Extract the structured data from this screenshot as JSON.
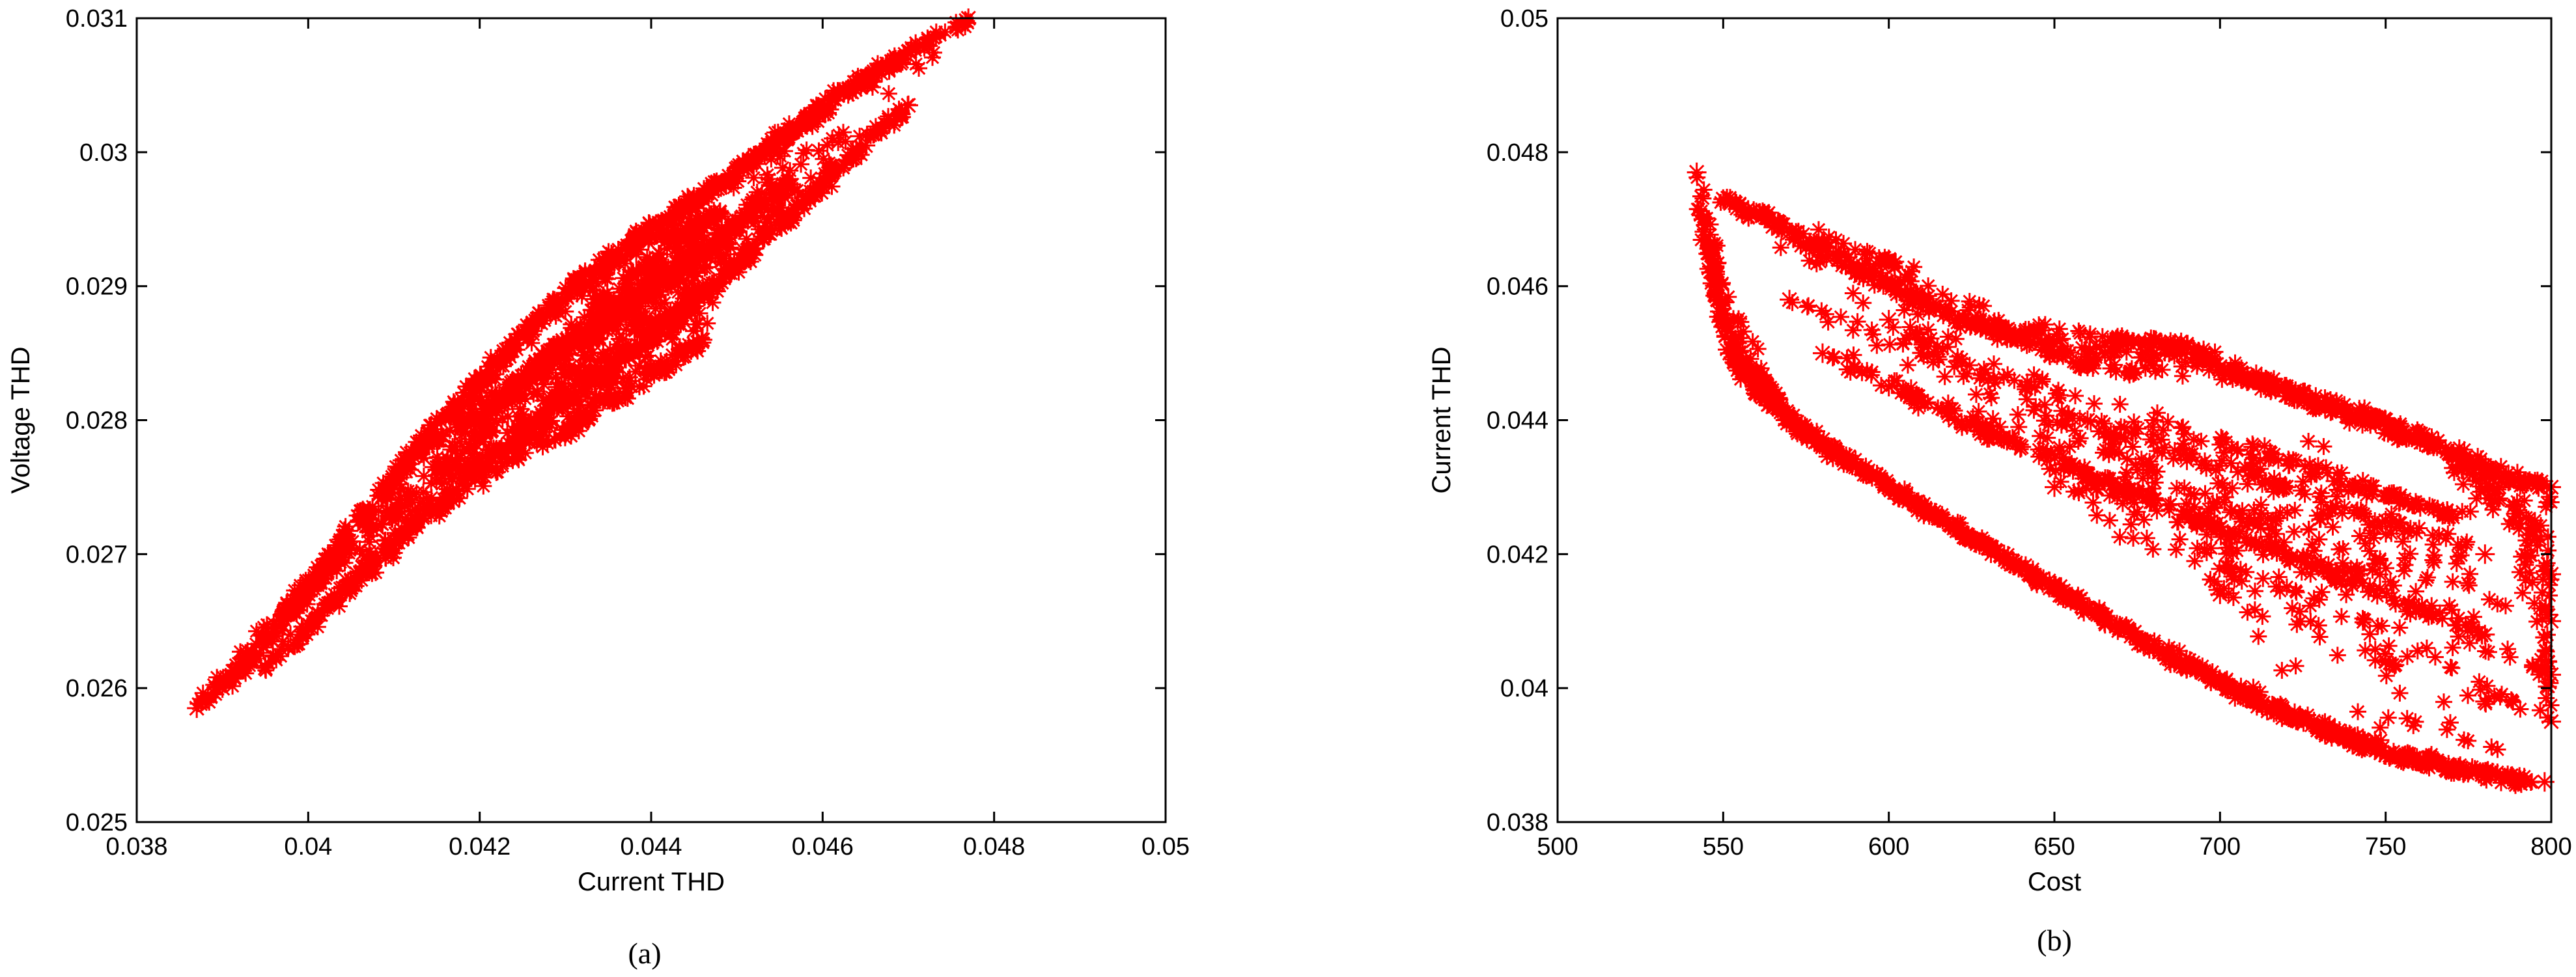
{
  "chart_data": [
    {
      "type": "scatter",
      "caption": "(a)",
      "xlabel": "Current THD",
      "ylabel": "Voltage THD",
      "xlim": [
        0.038,
        0.05
      ],
      "ylim": [
        0.025,
        0.031
      ],
      "xticks": [
        "0.038",
        "0.04",
        "0.042",
        "0.044",
        "0.046",
        "0.048",
        "0.05"
      ],
      "yticks": [
        "0.025",
        "0.026",
        "0.027",
        "0.028",
        "0.029",
        "0.03",
        "0.031"
      ],
      "marker": "asterisk",
      "color": "#ff0000",
      "grid": false,
      "series": [
        {
          "points": [
            [
              0.0387,
              0.02585
            ],
            [
              0.039,
              0.026
            ],
            [
              0.0393,
              0.0262
            ],
            [
              0.0396,
              0.02645
            ],
            [
              0.04,
              0.0267
            ],
            [
              0.0403,
              0.027
            ],
            [
              0.0406,
              0.02725
            ],
            [
              0.041,
              0.02755
            ],
            [
              0.0414,
              0.0279
            ],
            [
              0.0418,
              0.02815
            ],
            [
              0.0422,
              0.02845
            ],
            [
              0.0426,
              0.0287
            ],
            [
              0.043,
              0.02895
            ],
            [
              0.0434,
              0.02915
            ],
            [
              0.0438,
              0.02935
            ],
            [
              0.0442,
              0.0295
            ],
            [
              0.0446,
              0.02965
            ],
            [
              0.045,
              0.02985
            ],
            [
              0.0454,
              0.03005
            ],
            [
              0.0458,
              0.03025
            ],
            [
              0.0462,
              0.03045
            ],
            [
              0.0466,
              0.0306
            ],
            [
              0.047,
              0.03075
            ],
            [
              0.0477,
              0.031
            ],
            [
              0.0395,
              0.02615
            ],
            [
              0.04,
              0.02645
            ],
            [
              0.0405,
              0.0268
            ],
            [
              0.041,
              0.0271
            ],
            [
              0.0415,
              0.02735
            ],
            [
              0.042,
              0.02765
            ],
            [
              0.0425,
              0.0279
            ],
            [
              0.043,
              0.0282
            ],
            [
              0.0435,
              0.0284
            ],
            [
              0.044,
              0.0286
            ],
            [
              0.0445,
              0.02885
            ],
            [
              0.045,
              0.02915
            ],
            [
              0.0455,
              0.02945
            ],
            [
              0.046,
              0.02975
            ],
            [
              0.0465,
              0.03005
            ],
            [
              0.047,
              0.03035
            ],
            [
              0.0412,
              0.02775
            ],
            [
              0.0418,
              0.02795
            ],
            [
              0.0424,
              0.02825
            ],
            [
              0.0428,
              0.0285
            ],
            [
              0.0432,
              0.0286
            ],
            [
              0.0436,
              0.0288
            ],
            [
              0.044,
              0.029
            ],
            [
              0.0444,
              0.0292
            ],
            [
              0.0448,
              0.02935
            ],
            [
              0.0452,
              0.02955
            ],
            [
              0.0456,
              0.0298
            ],
            [
              0.0424,
              0.0278
            ],
            [
              0.043,
              0.0279
            ],
            [
              0.0436,
              0.02815
            ],
            [
              0.0442,
              0.0284
            ],
            [
              0.0446,
              0.0286
            ],
            [
              0.0402,
              0.02685
            ],
            [
              0.0408,
              0.0272
            ],
            [
              0.0416,
              0.0276
            ],
            [
              0.042,
              0.0279
            ],
            [
              0.0426,
              0.02835
            ],
            [
              0.0434,
              0.0289
            ],
            [
              0.0442,
              0.02935
            ],
            [
              0.0448,
              0.02955
            ]
          ]
        }
      ]
    },
    {
      "type": "scatter",
      "caption": "(b)",
      "xlabel": "Cost",
      "ylabel": "Current THD",
      "xlim": [
        500,
        800
      ],
      "ylim": [
        0.038,
        0.05
      ],
      "xticks": [
        "500",
        "550",
        "600",
        "650",
        "700",
        "750",
        "800"
      ],
      "yticks": [
        "0.038",
        "0.04",
        "0.042",
        "0.044",
        "0.046",
        "0.048",
        "0.05"
      ],
      "marker": "asterisk",
      "color": "#ff0000",
      "grid": false,
      "series": [
        {
          "points": [
            [
              542,
              0.0477
            ],
            [
              544,
              0.047
            ],
            [
              546,
              0.0465
            ],
            [
              548,
              0.046
            ],
            [
              550,
              0.0455
            ],
            [
              552,
              0.045
            ],
            [
              555,
              0.0448
            ],
            [
              560,
              0.0445
            ],
            [
              565,
              0.0442
            ],
            [
              570,
              0.044
            ],
            [
              575,
              0.0438
            ],
            [
              580,
              0.0436
            ],
            [
              590,
              0.0433
            ],
            [
              600,
              0.043
            ],
            [
              610,
              0.0427
            ],
            [
              620,
              0.0424
            ],
            [
              630,
              0.0421
            ],
            [
              640,
              0.0418
            ],
            [
              650,
              0.0415
            ],
            [
              660,
              0.0412
            ],
            [
              670,
              0.0409
            ],
            [
              680,
              0.0406
            ],
            [
              690,
              0.0403
            ],
            [
              700,
              0.0401
            ],
            [
              710,
              0.0398
            ],
            [
              720,
              0.0396
            ],
            [
              730,
              0.0394
            ],
            [
              740,
              0.0392
            ],
            [
              750,
              0.039
            ],
            [
              760,
              0.0389
            ],
            [
              770,
              0.0388
            ],
            [
              780,
              0.0387
            ],
            [
              790,
              0.0386
            ],
            [
              798,
              0.0386
            ],
            [
              550,
              0.0473
            ],
            [
              560,
              0.0471
            ],
            [
              570,
              0.0468
            ],
            [
              580,
              0.0466
            ],
            [
              590,
              0.0462
            ],
            [
              600,
              0.0464
            ],
            [
              610,
              0.0458
            ],
            [
              620,
              0.0455
            ],
            [
              630,
              0.0454
            ],
            [
              640,
              0.0452
            ],
            [
              650,
              0.045
            ],
            [
              660,
              0.0448
            ],
            [
              670,
              0.0452
            ],
            [
              680,
              0.0452
            ],
            [
              690,
              0.0451
            ],
            [
              700,
              0.0448
            ],
            [
              710,
              0.0446
            ],
            [
              720,
              0.0445
            ],
            [
              730,
              0.0442
            ],
            [
              740,
              0.0441
            ],
            [
              750,
              0.044
            ],
            [
              760,
              0.0438
            ],
            [
              770,
              0.0435
            ],
            [
              780,
              0.0432
            ],
            [
              790,
              0.0431
            ],
            [
              800,
              0.043
            ],
            [
              795,
              0.0424
            ],
            [
              800,
              0.0417
            ],
            [
              800,
              0.041
            ],
            [
              800,
              0.0402
            ],
            [
              800,
              0.0395
            ],
            [
              580,
              0.045
            ],
            [
              600,
              0.0445
            ],
            [
              620,
              0.044
            ],
            [
              640,
              0.0436
            ],
            [
              660,
              0.0432
            ],
            [
              680,
              0.0428
            ],
            [
              700,
              0.0424
            ],
            [
              720,
              0.042
            ],
            [
              740,
              0.0416
            ],
            [
              760,
              0.0412
            ],
            [
              780,
              0.0408
            ],
            [
              600,
              0.0455
            ],
            [
              630,
              0.0446
            ],
            [
              660,
              0.044
            ],
            [
              690,
              0.0434
            ],
            [
              720,
              0.043
            ],
            [
              750,
              0.0425
            ],
            [
              780,
              0.042
            ],
            [
              570,
              0.0458
            ],
            [
              650,
              0.043
            ],
            [
              700,
              0.0414
            ],
            [
              750,
              0.0404
            ],
            [
              780,
              0.0398
            ],
            [
              680,
              0.044
            ],
            [
              710,
              0.0436
            ],
            [
              740,
              0.043
            ],
            [
              770,
              0.0426
            ]
          ]
        }
      ]
    }
  ]
}
